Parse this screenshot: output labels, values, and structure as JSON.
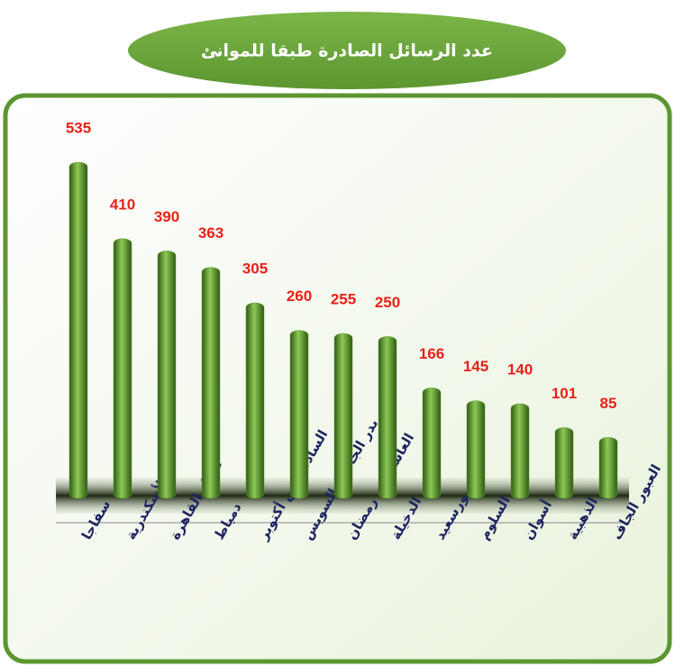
{
  "chart_data": {
    "type": "bar",
    "title": "عدد الرسائل الصادرة طبقا للموانئ",
    "categories": [
      "سفاجا",
      "الأسكندرية",
      "مطار القاهرة",
      "دمياط",
      "السادس من أكتوبر",
      "بدر الجاف - السويس",
      "العاشر من رمضان",
      "الدخيلة",
      "بورسعيد",
      "السلوم",
      "أسوان",
      "بدر الذهبية",
      "العبور الجاف"
    ],
    "values": [
      535,
      410,
      390,
      363,
      305,
      260,
      255,
      250,
      166,
      145,
      140,
      101,
      85
    ],
    "color": "#5e9a2c",
    "label_color": "#e8201a",
    "ylim": [
      0,
      560
    ]
  }
}
